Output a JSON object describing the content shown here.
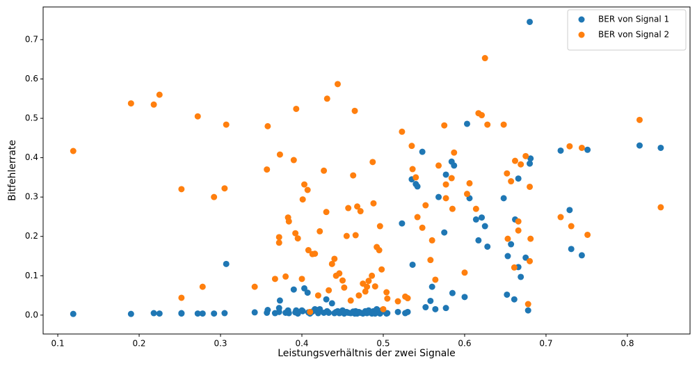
{
  "chart_data": {
    "type": "scatter",
    "x_label": "Leistungsverhältnis der zwei Signale",
    "y_label": "Bitfehlerrate",
    "x": [
      0.119,
      0.19,
      0.218,
      0.225,
      0.252,
      0.252,
      0.272,
      0.278,
      0.292,
      0.305,
      0.307,
      0.342,
      0.357,
      0.358,
      0.367,
      0.372,
      0.372,
      0.373,
      0.38,
      0.383,
      0.384,
      0.39,
      0.392,
      0.393,
      0.395,
      0.4,
      0.401,
      0.403,
      0.407,
      0.408,
      0.41,
      0.413,
      0.416,
      0.42,
      0.422,
      0.427,
      0.43,
      0.431,
      0.433,
      0.437,
      0.44,
      0.442,
      0.444,
      0.446,
      0.45,
      0.452,
      0.455,
      0.457,
      0.46,
      0.463,
      0.465,
      0.466,
      0.468,
      0.47,
      0.472,
      0.475,
      0.478,
      0.48,
      0.482,
      0.486,
      0.487,
      0.488,
      0.49,
      0.492,
      0.495,
      0.496,
      0.498,
      0.5,
      0.504,
      0.505,
      0.518,
      0.523,
      0.527,
      0.53,
      0.535,
      0.536,
      0.54,
      0.542,
      0.548,
      0.552,
      0.558,
      0.56,
      0.564,
      0.568,
      0.575,
      0.577,
      0.577,
      0.584,
      0.585,
      0.587,
      0.6,
      0.603,
      0.606,
      0.614,
      0.617,
      0.621,
      0.625,
      0.628,
      0.648,
      0.652,
      0.653,
      0.657,
      0.661,
      0.662,
      0.666,
      0.666,
      0.669,
      0.675,
      0.678,
      0.68,
      0.68,
      0.681,
      0.718,
      0.729,
      0.731,
      0.744,
      0.751,
      0.815,
      0.841
    ],
    "series": [
      {
        "name": "BER von Signal 1",
        "color": "#1f77b4",
        "values": [
          0.003,
          0.003,
          0.005,
          0.004,
          0.005,
          0.004,
          0.004,
          0.004,
          0.004,
          0.005,
          0.13,
          0.007,
          0.006,
          0.013,
          0.005,
          0.008,
          0.018,
          0.037,
          0.006,
          0.012,
          0.005,
          0.065,
          0.007,
          0.012,
          0.004,
          0.012,
          0.01,
          0.068,
          0.057,
          0.007,
          0.004,
          0.009,
          0.015,
          0.005,
          0.015,
          0.006,
          0.04,
          0.01,
          0.006,
          0.03,
          0.005,
          0.008,
          0.01,
          0.005,
          0.012,
          0.004,
          0.008,
          0.006,
          0.005,
          0.009,
          0.004,
          0.01,
          0.004,
          0.008,
          0.006,
          0.004,
          0.01,
          0.005,
          0.012,
          0.004,
          0.006,
          0.01,
          0.004,
          0.015,
          0.006,
          0.004,
          0.012,
          0.01,
          0.004,
          0.005,
          0.008,
          0.233,
          0.005,
          0.008,
          0.345,
          0.128,
          0.333,
          0.327,
          0.415,
          0.02,
          0.036,
          0.072,
          0.015,
          0.3,
          0.21,
          0.357,
          0.018,
          0.39,
          0.056,
          0.38,
          0.046,
          0.486,
          0.297,
          0.243,
          0.19,
          0.248,
          0.226,
          0.174,
          0.297,
          0.052,
          0.15,
          0.18,
          0.04,
          0.243,
          0.347,
          0.122,
          0.097,
          0.146,
          0.012,
          0.385,
          0.745,
          0.398,
          0.418,
          0.267,
          0.168,
          0.152,
          0.42,
          0.431,
          0.425
        ]
      },
      {
        "name": "BER von Signal 2",
        "color": "#ff7f0e",
        "values": [
          0.417,
          0.538,
          0.535,
          0.56,
          0.32,
          0.044,
          0.505,
          0.072,
          0.3,
          0.322,
          0.484,
          0.072,
          0.37,
          0.48,
          0.092,
          0.198,
          0.184,
          0.408,
          0.098,
          0.248,
          0.238,
          0.394,
          0.208,
          0.524,
          0.195,
          0.092,
          0.294,
          0.332,
          0.318,
          0.165,
          0.008,
          0.155,
          0.156,
          0.05,
          0.213,
          0.367,
          0.262,
          0.55,
          0.063,
          0.13,
          0.143,
          0.1,
          0.587,
          0.106,
          0.088,
          0.07,
          0.201,
          0.272,
          0.037,
          0.355,
          0.519,
          0.203,
          0.276,
          0.05,
          0.264,
          0.08,
          0.06,
          0.072,
          0.087,
          0.1,
          0.389,
          0.284,
          0.073,
          0.173,
          0.165,
          0.226,
          0.116,
          0.015,
          0.058,
          0.042,
          0.035,
          0.466,
          0.047,
          0.043,
          0.43,
          0.371,
          0.35,
          0.249,
          0.222,
          0.279,
          0.14,
          0.19,
          0.09,
          0.38,
          0.482,
          0.332,
          0.297,
          0.348,
          0.27,
          0.413,
          0.108,
          0.308,
          0.335,
          0.27,
          0.513,
          0.508,
          0.653,
          0.484,
          0.484,
          0.36,
          0.194,
          0.34,
          0.121,
          0.392,
          0.215,
          0.238,
          0.383,
          0.404,
          0.028,
          0.326,
          0.137,
          0.194,
          0.249,
          0.429,
          0.226,
          0.425,
          0.204,
          0.496,
          0.274
        ]
      }
    ],
    "xlim": [
      0.082,
      0.877
    ],
    "xticks": [
      0.1,
      0.2,
      0.3,
      0.4,
      0.5,
      0.6,
      0.7,
      0.8
    ],
    "ylim": [
      -0.048,
      0.783
    ],
    "yticks": [
      {
        "value": 0,
        "label": "0.0"
      },
      0.1,
      0.2,
      0.3,
      0.4,
      0.5,
      0.6,
      0.7
    ],
    "legend": "upper right"
  }
}
